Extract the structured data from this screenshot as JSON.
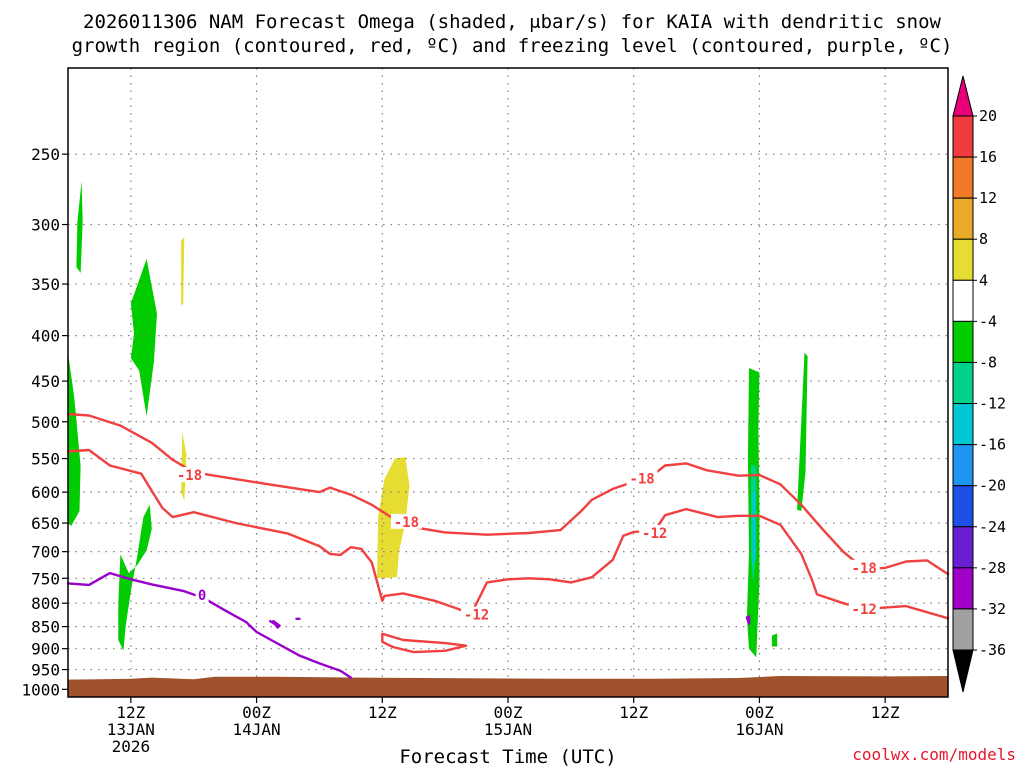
{
  "header": {
    "title_line1": "2026011306 NAM Forecast Omega (shaded, μbar/s) for KAIA with dendritic snow",
    "title_line2": "growth region (contoured, red, ºC) and freezing level (contoured, purple, ºC)"
  },
  "footer": {
    "credit": "coolwx.com/models"
  },
  "colors": {
    "ground": "#a0522d",
    "dgz_contour": "#f04040",
    "freezing_contour": "#9a00cc",
    "grid": "#808080"
  },
  "chart_data": {
    "type": "heatmap",
    "title": "2026011306 NAM Forecast Omega (shaded, μbar/s) for KAIA with dendritic snow growth region (contoured, red, ºC) and freezing level (contoured, purple, ºC)",
    "xlabel": "Forecast Time (UTC)",
    "ylabel": "",
    "x_ticks": [
      {
        "h": 6,
        "line1": "12Z",
        "line2": "13JAN",
        "line3": "2026"
      },
      {
        "h": 18,
        "line1": "00Z",
        "line2": "14JAN",
        "line3": ""
      },
      {
        "h": 30,
        "line1": "12Z",
        "line2": "",
        "line3": ""
      },
      {
        "h": 42,
        "line1": "00Z",
        "line2": "15JAN",
        "line3": ""
      },
      {
        "h": 54,
        "line1": "12Z",
        "line2": "",
        "line3": ""
      },
      {
        "h": 66,
        "line1": "00Z",
        "line2": "16JAN",
        "line3": ""
      },
      {
        "h": 78,
        "line1": "12Z",
        "line2": "",
        "line3": ""
      }
    ],
    "xlim_hours": [
      0,
      84
    ],
    "y_ticks": [
      250,
      300,
      350,
      400,
      450,
      500,
      550,
      600,
      650,
      700,
      750,
      800,
      850,
      900,
      950,
      1000
    ],
    "ylim_hpa": [
      1020,
      200
    ],
    "y_scale": "log-pressure",
    "grid": true,
    "colorbar": {
      "levels": [
        "20",
        "16",
        "12",
        "8",
        "4",
        "-4",
        "-8",
        "-12",
        "-16",
        "-20",
        "-24",
        "-28",
        "-32",
        "-36"
      ],
      "colors": [
        "#e8007a",
        "#f03c3c",
        "#f07a28",
        "#e8aa28",
        "#e6dc32",
        "#ffffff",
        "#00cc00",
        "#00d28c",
        "#00c8d2",
        "#1e96f0",
        "#1e50e6",
        "#6a1ed2",
        "#a000c8",
        "#a0a0a0",
        "#000000"
      ]
    },
    "omega_regions": [
      {
        "value_class": "-4",
        "color": "#00cc00",
        "points": [
          [
            0.9,
            298
          ],
          [
            1.3,
            268
          ],
          [
            1.4,
            298
          ],
          [
            1.2,
            340
          ],
          [
            0.8,
            335
          ]
        ]
      },
      {
        "value_class": "-4",
        "color": "#00cc00",
        "points": [
          [
            6.0,
            368
          ],
          [
            7.5,
            328
          ],
          [
            8.5,
            378
          ],
          [
            8.2,
            428
          ],
          [
            7.5,
            493
          ],
          [
            6.8,
            438
          ],
          [
            6.0,
            424
          ],
          [
            6.3,
            398
          ]
        ]
      },
      {
        "value_class": "-4",
        "color": "#00cc00",
        "points": [
          [
            0.0,
            418
          ],
          [
            0.6,
            470
          ],
          [
            1.2,
            560
          ],
          [
            1.1,
            630
          ],
          [
            0.3,
            655
          ],
          [
            0.0,
            650
          ]
        ]
      },
      {
        "value_class": "-4",
        "color": "#00cc00",
        "points": [
          [
            5.0,
            705
          ],
          [
            5.8,
            740
          ],
          [
            6.6,
            725
          ],
          [
            7.5,
            698
          ],
          [
            8.0,
            660
          ],
          [
            7.8,
            620
          ],
          [
            7.2,
            640
          ],
          [
            6.6,
            710
          ],
          [
            6.0,
            775
          ],
          [
            5.5,
            850
          ],
          [
            5.3,
            905
          ],
          [
            4.8,
            880
          ],
          [
            4.8,
            800
          ]
        ]
      },
      {
        "value_class": "4",
        "color": "#e6dc32",
        "points": [
          [
            10.8,
            313
          ],
          [
            11.1,
            310
          ],
          [
            11.0,
            368
          ],
          [
            10.8,
            370
          ]
        ]
      },
      {
        "value_class": "4",
        "color": "#e6dc32",
        "points": [
          [
            10.9,
            513
          ],
          [
            11.3,
            545
          ],
          [
            11.1,
            614
          ],
          [
            10.8,
            600
          ]
        ]
      },
      {
        "value_class": "4",
        "color": "#e6dc32",
        "points": [
          [
            31.2,
            550
          ],
          [
            32.2,
            548
          ],
          [
            32.6,
            590
          ],
          [
            32.2,
            650
          ],
          [
            31.6,
            700
          ],
          [
            31.4,
            748
          ],
          [
            29.5,
            750
          ],
          [
            29.6,
            640
          ],
          [
            30.2,
            580
          ]
        ]
      },
      {
        "value_class": "-4",
        "color": "#00cc00",
        "points": [
          [
            65.0,
            435
          ],
          [
            66.0,
            440
          ],
          [
            65.9,
            510
          ],
          [
            66.0,
            620
          ],
          [
            66.0,
            760
          ],
          [
            65.8,
            860
          ],
          [
            65.7,
            920
          ],
          [
            65.0,
            900
          ],
          [
            64.8,
            830
          ],
          [
            65.0,
            700
          ],
          [
            64.9,
            550
          ]
        ]
      },
      {
        "value_class": "-8",
        "color": "#00d28c",
        "points": [
          [
            65.2,
            560
          ],
          [
            65.7,
            560
          ],
          [
            65.7,
            700
          ],
          [
            65.4,
            760
          ],
          [
            65.2,
            700
          ]
        ]
      },
      {
        "value_class": "-12",
        "color": "#00c8d2",
        "points": [
          [
            65.3,
            600
          ],
          [
            65.6,
            600
          ],
          [
            65.6,
            720
          ],
          [
            65.3,
            720
          ]
        ]
      },
      {
        "value_class": "-4",
        "color": "#00cc00",
        "points": [
          [
            70.3,
            418
          ],
          [
            70.6,
            422
          ],
          [
            70.4,
            570
          ],
          [
            70.0,
            630
          ],
          [
            69.6,
            628
          ]
        ]
      },
      {
        "value_class": "-4",
        "color": "#00cc00",
        "points": [
          [
            67.2,
            870
          ],
          [
            67.7,
            865
          ],
          [
            67.7,
            895
          ],
          [
            67.2,
            895
          ]
        ]
      }
    ],
    "dgz_contours": [
      {
        "label": "-18",
        "points": [
          [
            0,
            490
          ],
          [
            2,
            492
          ],
          [
            5,
            505
          ],
          [
            8,
            528
          ],
          [
            10,
            552
          ],
          [
            12,
            570
          ],
          [
            16,
            580
          ],
          [
            20,
            590
          ],
          [
            24,
            600
          ],
          [
            25,
            593
          ],
          [
            27,
            604
          ],
          [
            29,
            620
          ],
          [
            31,
            642
          ],
          [
            33,
            657
          ],
          [
            36,
            666
          ],
          [
            40,
            670
          ],
          [
            44,
            667
          ],
          [
            47,
            662
          ],
          [
            49,
            630
          ],
          [
            50,
            612
          ],
          [
            52,
            595
          ],
          [
            54,
            584
          ],
          [
            56,
            572
          ],
          [
            57,
            560
          ],
          [
            59,
            557
          ],
          [
            61,
            567
          ],
          [
            64,
            575
          ],
          [
            66,
            574
          ],
          [
            68,
            588
          ],
          [
            70,
            620
          ],
          [
            72,
            660
          ],
          [
            74,
            700
          ],
          [
            76,
            732
          ],
          [
            78,
            730
          ],
          [
            80,
            718
          ],
          [
            82,
            716
          ],
          [
            84,
            742
          ]
        ]
      },
      {
        "label": "-12",
        "points": [
          [
            0,
            540
          ],
          [
            2,
            538
          ],
          [
            4,
            560
          ],
          [
            7,
            572
          ],
          [
            8,
            598
          ],
          [
            9,
            625
          ],
          [
            10,
            640
          ],
          [
            12,
            632
          ],
          [
            16,
            650
          ],
          [
            21,
            668
          ],
          [
            24,
            690
          ],
          [
            25,
            704
          ],
          [
            26,
            706
          ],
          [
            27,
            692
          ],
          [
            28,
            695
          ],
          [
            29,
            720
          ],
          [
            30,
            795
          ],
          [
            30.2,
            785
          ],
          [
            32,
            780
          ],
          [
            35,
            795
          ],
          [
            37,
            810
          ],
          [
            38.5,
            822
          ],
          [
            39,
            800
          ],
          [
            40,
            758
          ],
          [
            42,
            752
          ],
          [
            44,
            750
          ],
          [
            46,
            752
          ],
          [
            48,
            758
          ],
          [
            50,
            748
          ],
          [
            52,
            715
          ],
          [
            53,
            672
          ],
          [
            54,
            665
          ],
          [
            56,
            663
          ],
          [
            57,
            637
          ],
          [
            59,
            627
          ],
          [
            62,
            640
          ],
          [
            64,
            638
          ],
          [
            66,
            638
          ],
          [
            68,
            653
          ],
          [
            70,
            704
          ],
          [
            71,
            752
          ],
          [
            71.5,
            782
          ],
          [
            74,
            800
          ],
          [
            76,
            812
          ],
          [
            80,
            806
          ],
          [
            84,
            832
          ]
        ]
      },
      {
        "label": "",
        "points": [
          [
            30,
            866
          ],
          [
            32,
            880
          ],
          [
            36,
            887
          ],
          [
            38,
            893
          ],
          [
            36,
            905
          ],
          [
            33,
            908
          ],
          [
            31,
            896
          ],
          [
            30,
            884
          ],
          [
            30,
            866
          ]
        ]
      }
    ],
    "freezing_contours": [
      {
        "label": "0",
        "points": [
          [
            0,
            760
          ],
          [
            2,
            763
          ],
          [
            4,
            740
          ],
          [
            6,
            752
          ],
          [
            8,
            762
          ],
          [
            11,
            775
          ],
          [
            13,
            790
          ],
          [
            15,
            815
          ],
          [
            17,
            840
          ],
          [
            18,
            862
          ],
          [
            20,
            888
          ],
          [
            22,
            915
          ],
          [
            24,
            935
          ],
          [
            26,
            953
          ],
          [
            27,
            970
          ]
        ]
      },
      {
        "label": "",
        "points": [
          [
            19.3,
            838
          ],
          [
            19.8,
            845
          ],
          [
            20,
            852
          ],
          [
            20.2,
            848
          ],
          [
            19.6,
            838
          ]
        ]
      },
      {
        "label": "",
        "points": [
          [
            21.8,
            833
          ],
          [
            22.1,
            833
          ]
        ]
      },
      {
        "label": "",
        "points": [
          [
            64.8,
            830
          ],
          [
            65.0,
            843
          ],
          [
            65.0,
            828
          ]
        ]
      }
    ],
    "contour_labels": [
      {
        "text": "-18",
        "h": 11.6,
        "p": 574,
        "color": "#f04040"
      },
      {
        "text": "-18",
        "h": 32.3,
        "p": 648,
        "color": "#f04040"
      },
      {
        "text": "-18",
        "h": 54.8,
        "p": 579,
        "color": "#f04040"
      },
      {
        "text": "-18",
        "h": 76.0,
        "p": 730,
        "color": "#f04040"
      },
      {
        "text": "-12",
        "h": 39.0,
        "p": 824,
        "color": "#f04040"
      },
      {
        "text": "-12",
        "h": 56.0,
        "p": 667,
        "color": "#f04040"
      },
      {
        "text": "-12",
        "h": 76.0,
        "p": 812,
        "color": "#f04040"
      },
      {
        "text": "0",
        "h": 12.8,
        "p": 783,
        "color": "#9a00cc"
      }
    ]
  }
}
